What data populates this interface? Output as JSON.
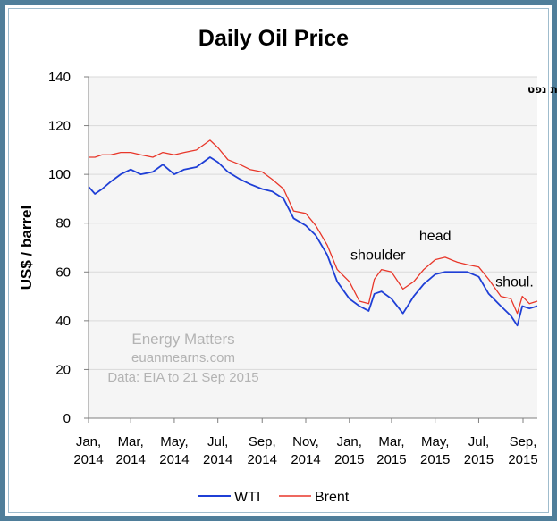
{
  "chart_data": {
    "type": "line",
    "title": "Daily Oil Price",
    "subtitle_hebrew": "מחיר יומי לחבית נפט",
    "ylabel": "US$ / barrel",
    "xlabel": "",
    "ylim": [
      0,
      140
    ],
    "yticks": [
      0,
      20,
      40,
      60,
      80,
      100,
      120,
      140
    ],
    "xticks": [
      {
        "line1": "Jan,",
        "line2": "2014",
        "x": "2014-01-01"
      },
      {
        "line1": "Mar,",
        "line2": "2014",
        "x": "2014-03-01"
      },
      {
        "line1": "May,",
        "line2": "2014",
        "x": "2014-05-01"
      },
      {
        "line1": "Jul,",
        "line2": "2014",
        "x": "2014-07-01"
      },
      {
        "line1": "Sep,",
        "line2": "2014",
        "x": "2014-09-01"
      },
      {
        "line1": "Nov,",
        "line2": "2014",
        "x": "2014-11-01"
      },
      {
        "line1": "Jan,",
        "line2": "2015",
        "x": "2015-01-01"
      },
      {
        "line1": "Mar,",
        "line2": "2015",
        "x": "2015-03-01"
      },
      {
        "line1": "May,",
        "line2": "2015",
        "x": "2015-05-01"
      },
      {
        "line1": "Jul,",
        "line2": "2015",
        "x": "2015-07-01"
      },
      {
        "line1": "Sep,",
        "line2": "2015",
        "x": "2015-09-01"
      }
    ],
    "xlim": [
      "2014-01-01",
      "2015-09-21"
    ],
    "grid": "horizontal",
    "legend": "bottom",
    "series": [
      {
        "name": "WTI",
        "color": "#1f3fd6",
        "points": [
          [
            "2014-01-01",
            95
          ],
          [
            "2014-01-10",
            92
          ],
          [
            "2014-01-20",
            94
          ],
          [
            "2014-02-01",
            97
          ],
          [
            "2014-02-15",
            100
          ],
          [
            "2014-03-01",
            102
          ],
          [
            "2014-03-15",
            100
          ],
          [
            "2014-04-01",
            101
          ],
          [
            "2014-04-15",
            104
          ],
          [
            "2014-05-01",
            100
          ],
          [
            "2014-05-15",
            102
          ],
          [
            "2014-06-01",
            103
          ],
          [
            "2014-06-20",
            107
          ],
          [
            "2014-07-01",
            105
          ],
          [
            "2014-07-15",
            101
          ],
          [
            "2014-08-01",
            98
          ],
          [
            "2014-08-15",
            96
          ],
          [
            "2014-09-01",
            94
          ],
          [
            "2014-09-15",
            93
          ],
          [
            "2014-10-01",
            90
          ],
          [
            "2014-10-15",
            82
          ],
          [
            "2014-11-01",
            79
          ],
          [
            "2014-11-15",
            75
          ],
          [
            "2014-12-01",
            67
          ],
          [
            "2014-12-15",
            56
          ],
          [
            "2015-01-01",
            49
          ],
          [
            "2015-01-15",
            46
          ],
          [
            "2015-01-28",
            44
          ],
          [
            "2015-02-05",
            51
          ],
          [
            "2015-02-15",
            52
          ],
          [
            "2015-03-01",
            49
          ],
          [
            "2015-03-17",
            43
          ],
          [
            "2015-04-01",
            50
          ],
          [
            "2015-04-15",
            55
          ],
          [
            "2015-05-01",
            59
          ],
          [
            "2015-05-15",
            60
          ],
          [
            "2015-06-01",
            60
          ],
          [
            "2015-06-15",
            60
          ],
          [
            "2015-07-01",
            58
          ],
          [
            "2015-07-15",
            51
          ],
          [
            "2015-08-01",
            46
          ],
          [
            "2015-08-15",
            42
          ],
          [
            "2015-08-24",
            38
          ],
          [
            "2015-08-31",
            46
          ],
          [
            "2015-09-10",
            45
          ],
          [
            "2015-09-21",
            46
          ]
        ]
      },
      {
        "name": "Brent",
        "color": "#e8372a",
        "points": [
          [
            "2014-01-01",
            107
          ],
          [
            "2014-01-10",
            107
          ],
          [
            "2014-01-20",
            108
          ],
          [
            "2014-02-01",
            108
          ],
          [
            "2014-02-15",
            109
          ],
          [
            "2014-03-01",
            109
          ],
          [
            "2014-03-15",
            108
          ],
          [
            "2014-04-01",
            107
          ],
          [
            "2014-04-15",
            109
          ],
          [
            "2014-05-01",
            108
          ],
          [
            "2014-05-15",
            109
          ],
          [
            "2014-06-01",
            110
          ],
          [
            "2014-06-20",
            114
          ],
          [
            "2014-07-01",
            111
          ],
          [
            "2014-07-15",
            106
          ],
          [
            "2014-08-01",
            104
          ],
          [
            "2014-08-15",
            102
          ],
          [
            "2014-09-01",
            101
          ],
          [
            "2014-09-15",
            98
          ],
          [
            "2014-10-01",
            94
          ],
          [
            "2014-10-15",
            85
          ],
          [
            "2014-11-01",
            84
          ],
          [
            "2014-11-15",
            79
          ],
          [
            "2014-12-01",
            71
          ],
          [
            "2014-12-15",
            61
          ],
          [
            "2015-01-01",
            56
          ],
          [
            "2015-01-15",
            48
          ],
          [
            "2015-01-28",
            47
          ],
          [
            "2015-02-05",
            57
          ],
          [
            "2015-02-15",
            61
          ],
          [
            "2015-03-01",
            60
          ],
          [
            "2015-03-17",
            53
          ],
          [
            "2015-04-01",
            56
          ],
          [
            "2015-04-15",
            61
          ],
          [
            "2015-05-01",
            65
          ],
          [
            "2015-05-15",
            66
          ],
          [
            "2015-06-01",
            64
          ],
          [
            "2015-06-15",
            63
          ],
          [
            "2015-07-01",
            62
          ],
          [
            "2015-07-15",
            57
          ],
          [
            "2015-08-01",
            50
          ],
          [
            "2015-08-15",
            49
          ],
          [
            "2015-08-24",
            43
          ],
          [
            "2015-08-31",
            50
          ],
          [
            "2015-09-10",
            47
          ],
          [
            "2015-09-21",
            48
          ]
        ]
      }
    ],
    "annotations": [
      {
        "text": "shoulder",
        "x": "2015-02-10",
        "y": 65
      },
      {
        "text": "head",
        "x": "2015-05-01",
        "y": 73
      },
      {
        "text": "shoul.",
        "x": "2015-08-20",
        "y": 54
      }
    ],
    "watermark": [
      "Energy Matters",
      "euanmearns.com",
      "Data: EIA to 21 Sep 2015"
    ]
  }
}
